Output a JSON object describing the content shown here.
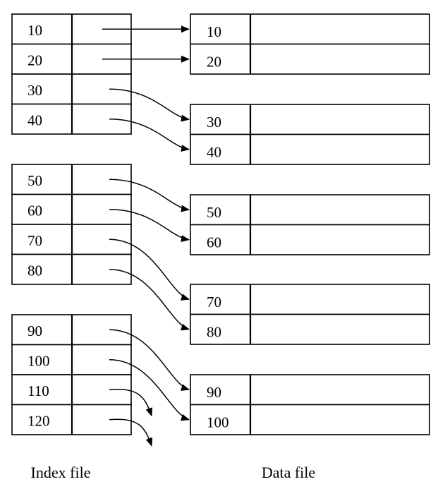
{
  "index_file": {
    "label": "Index file",
    "blocks": [
      {
        "keys": [
          "10",
          "20",
          "30",
          "40"
        ]
      },
      {
        "keys": [
          "50",
          "60",
          "70",
          "80"
        ]
      },
      {
        "keys": [
          "90",
          "100",
          "110",
          "120"
        ]
      }
    ]
  },
  "data_file": {
    "label": "Data file",
    "blocks": [
      {
        "keys": [
          "10",
          "20"
        ]
      },
      {
        "keys": [
          "30",
          "40"
        ]
      },
      {
        "keys": [
          "50",
          "60"
        ]
      },
      {
        "keys": [
          "70",
          "80"
        ]
      },
      {
        "keys": [
          "90",
          "100"
        ]
      }
    ]
  }
}
